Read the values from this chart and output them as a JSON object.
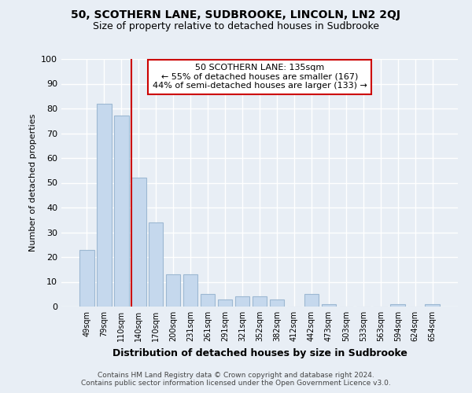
{
  "title": "50, SCOTHERN LANE, SUDBROOKE, LINCOLN, LN2 2QJ",
  "subtitle": "Size of property relative to detached houses in Sudbrooke",
  "xlabel": "Distribution of detached houses by size in Sudbrooke",
  "ylabel": "Number of detached properties",
  "bar_labels": [
    "49sqm",
    "79sqm",
    "110sqm",
    "140sqm",
    "170sqm",
    "200sqm",
    "231sqm",
    "261sqm",
    "291sqm",
    "321sqm",
    "352sqm",
    "382sqm",
    "412sqm",
    "442sqm",
    "473sqm",
    "503sqm",
    "533sqm",
    "563sqm",
    "594sqm",
    "624sqm",
    "654sqm"
  ],
  "bar_values": [
    23,
    82,
    77,
    52,
    34,
    13,
    13,
    5,
    3,
    4,
    4,
    3,
    0,
    5,
    1,
    0,
    0,
    0,
    1,
    0,
    1
  ],
  "bar_color": "#c5d8ed",
  "bar_edge_color": "#9db8d2",
  "vline_color": "#cc0000",
  "ylim": [
    0,
    100
  ],
  "yticks": [
    0,
    10,
    20,
    30,
    40,
    50,
    60,
    70,
    80,
    90,
    100
  ],
  "annotation_title": "50 SCOTHERN LANE: 135sqm",
  "annotation_line1": "← 55% of detached houses are smaller (167)",
  "annotation_line2": "44% of semi-detached houses are larger (133) →",
  "annotation_box_color": "#ffffff",
  "annotation_box_edge": "#cc0000",
  "background_color": "#e8eef5",
  "grid_color": "#ffffff",
  "footer_line1": "Contains HM Land Registry data © Crown copyright and database right 2024.",
  "footer_line2": "Contains public sector information licensed under the Open Government Licence v3.0."
}
